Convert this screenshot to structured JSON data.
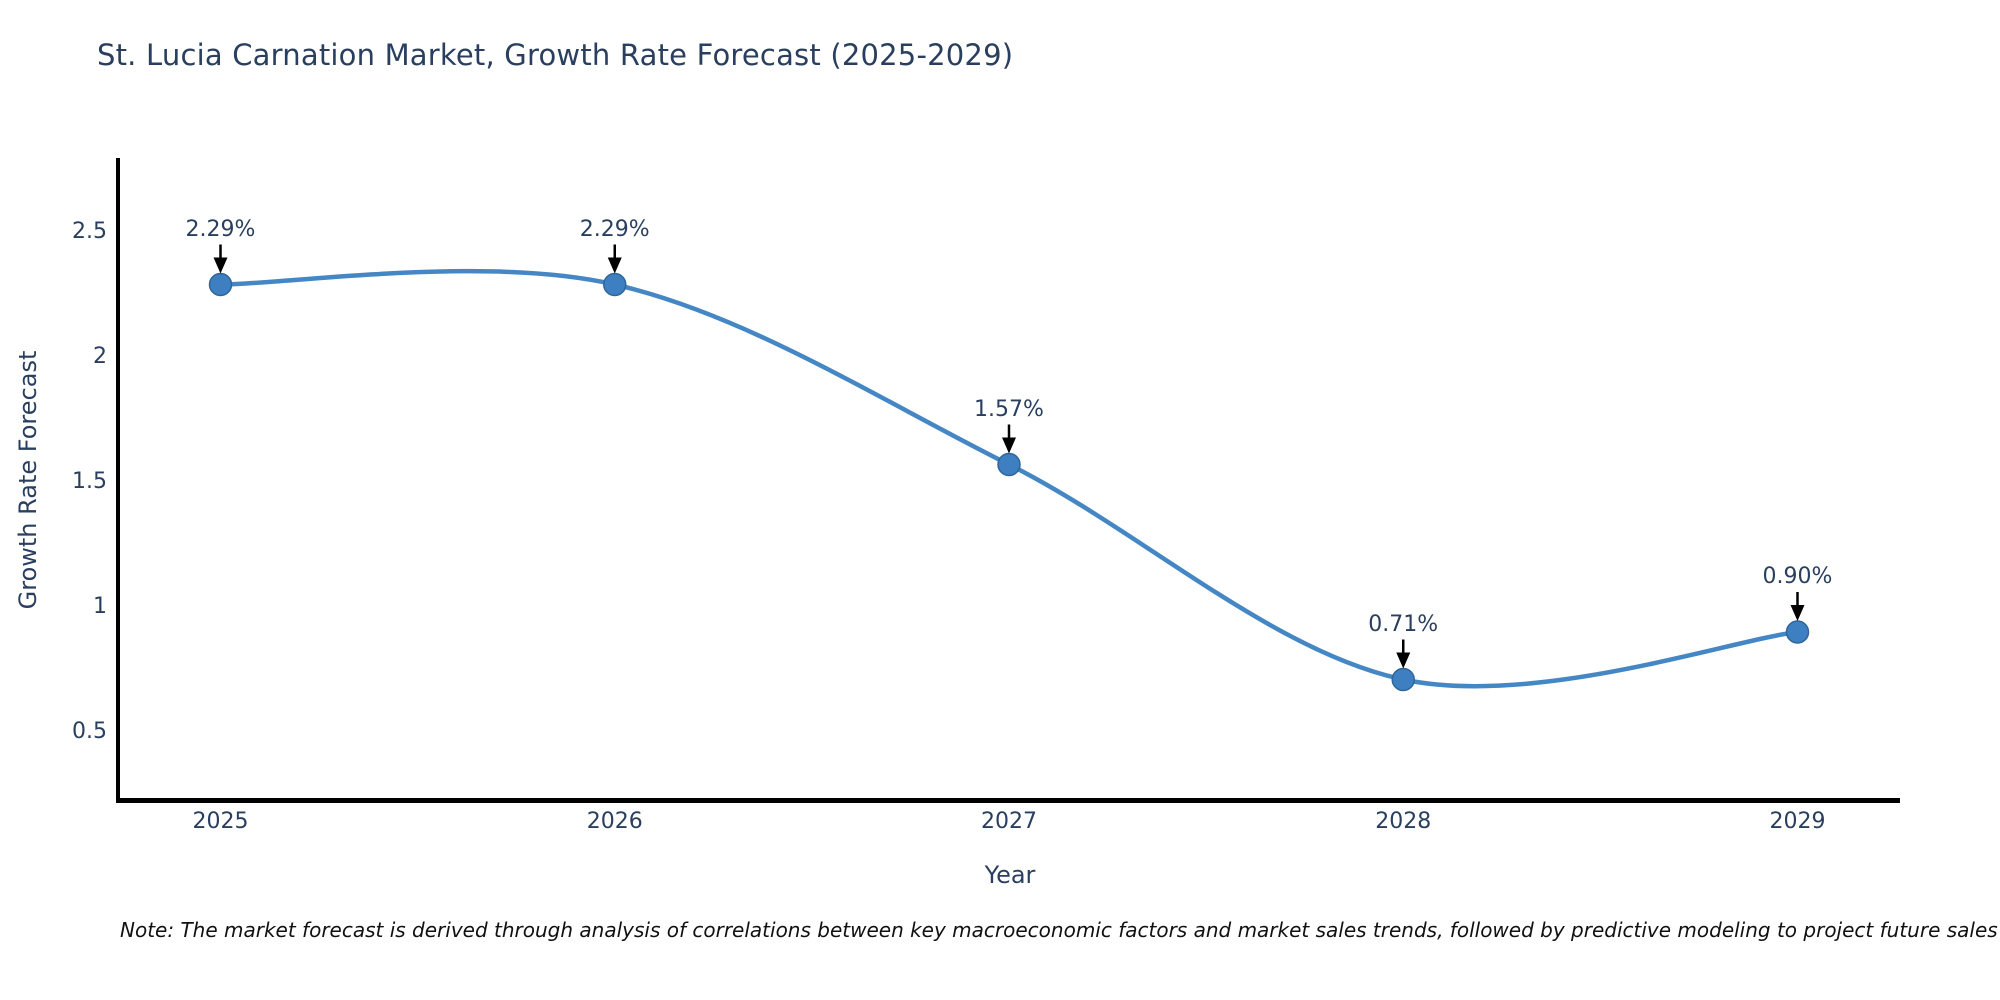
{
  "page": {
    "background": "#ffffff"
  },
  "chart_data": {
    "type": "line",
    "title": "St. Lucia Carnation Market, Growth Rate Forecast (2025-2029)",
    "xlabel": "Year",
    "ylabel": "Growth Rate Forecast",
    "x": [
      2025,
      2026,
      2027,
      2028,
      2029
    ],
    "values": [
      2.29,
      2.29,
      1.57,
      0.71,
      0.9
    ],
    "point_labels": [
      "2.29%",
      "2.29%",
      "1.57%",
      "0.71%",
      "0.90%"
    ],
    "xtick_labels": [
      "2025",
      "2026",
      "2027",
      "2028",
      "2029"
    ],
    "ytick_values": [
      2.5,
      2.0,
      1.5,
      1.0,
      0.5
    ],
    "ytick_labels": [
      "2.5",
      "2",
      "1.5",
      "1",
      "0.5"
    ],
    "xlim": [
      2024.74,
      2029.26
    ],
    "ylim": [
      0.228,
      2.788
    ],
    "grid": false,
    "legend": "none",
    "line_shape": "spline",
    "colors": {
      "line": "#4587c5",
      "marker": "#3d7fc1",
      "marker_edge": "#2f6699",
      "axis": "#000000",
      "text": "#2a3f5f",
      "annotation_arrow": "#000000"
    }
  },
  "note": {
    "text": "Note: The market forecast is derived through analysis of correlations between key macroeconomic factors and market sales trends, followed by predictive modeling to project future sales"
  }
}
